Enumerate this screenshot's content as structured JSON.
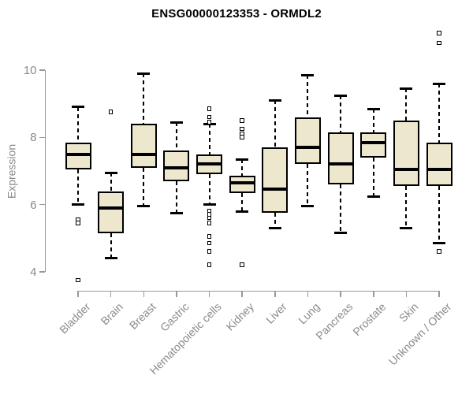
{
  "title": "ENSG00000123353 - ORMDL2",
  "chart_data": {
    "type": "boxplot",
    "title": "ENSG00000123353 - ORMDL2",
    "xlabel": "",
    "ylabel": "Expression",
    "yticks": [
      4,
      6,
      8,
      10
    ],
    "ylim": [
      3.5,
      11.3
    ],
    "grid": false,
    "legend": "none",
    "box_fill_color": "#EDE7CD",
    "box_border_color": "#000000",
    "median_color": "#000000",
    "axis_color": "#999999",
    "text_color": "#8a8a8a",
    "title_color": "#000000",
    "categories": [
      "Bladder",
      "Brain",
      "Breast",
      "Gastric",
      "Hematopoietic cells",
      "Kidney",
      "Liver",
      "Lung",
      "Pancreas",
      "Prostate",
      "Skin",
      "Unknown / Other"
    ],
    "series": [
      {
        "name": "Bladder",
        "low": 6.0,
        "q1": 7.05,
        "median": 7.5,
        "q3": 7.85,
        "high": 8.9,
        "outliers": [
          5.55,
          5.45,
          3.75
        ]
      },
      {
        "name": "Brain",
        "low": 4.4,
        "q1": 5.15,
        "median": 5.9,
        "q3": 6.4,
        "high": 6.95,
        "outliers": [
          8.75
        ]
      },
      {
        "name": "Breast",
        "low": 5.95,
        "q1": 7.1,
        "median": 7.5,
        "q3": 8.4,
        "high": 9.9,
        "outliers": []
      },
      {
        "name": "Gastric",
        "low": 5.75,
        "q1": 6.7,
        "median": 7.1,
        "q3": 7.6,
        "high": 8.45,
        "outliers": []
      },
      {
        "name": "Hematopoietic cells",
        "low": 6.0,
        "q1": 6.9,
        "median": 7.2,
        "q3": 7.5,
        "high": 8.4,
        "outliers": [
          8.85,
          8.6,
          8.45,
          5.8,
          5.7,
          5.6,
          5.45,
          5.05,
          4.85,
          4.6,
          4.2
        ]
      },
      {
        "name": "Kidney",
        "low": 5.8,
        "q1": 6.35,
        "median": 6.65,
        "q3": 6.85,
        "high": 7.35,
        "outliers": [
          8.5,
          8.25,
          8.1,
          8.0,
          4.2
        ]
      },
      {
        "name": "Liver",
        "low": 5.3,
        "q1": 5.75,
        "median": 6.45,
        "q3": 7.7,
        "high": 9.1,
        "outliers": []
      },
      {
        "name": "Lung",
        "low": 5.95,
        "q1": 7.2,
        "median": 7.7,
        "q3": 8.6,
        "high": 9.85,
        "outliers": []
      },
      {
        "name": "Pancreas",
        "low": 5.15,
        "q1": 6.6,
        "median": 7.2,
        "q3": 8.15,
        "high": 9.25,
        "outliers": []
      },
      {
        "name": "Prostate",
        "low": 6.25,
        "q1": 7.4,
        "median": 7.85,
        "q3": 8.15,
        "high": 8.85,
        "outliers": []
      },
      {
        "name": "Skin",
        "low": 5.3,
        "q1": 6.55,
        "median": 7.05,
        "q3": 8.5,
        "high": 9.45,
        "outliers": []
      },
      {
        "name": "Unknown / Other",
        "low": 4.85,
        "q1": 6.55,
        "median": 7.05,
        "q3": 7.85,
        "high": 9.6,
        "outliers": [
          11.1,
          10.8,
          4.6
        ]
      }
    ]
  }
}
